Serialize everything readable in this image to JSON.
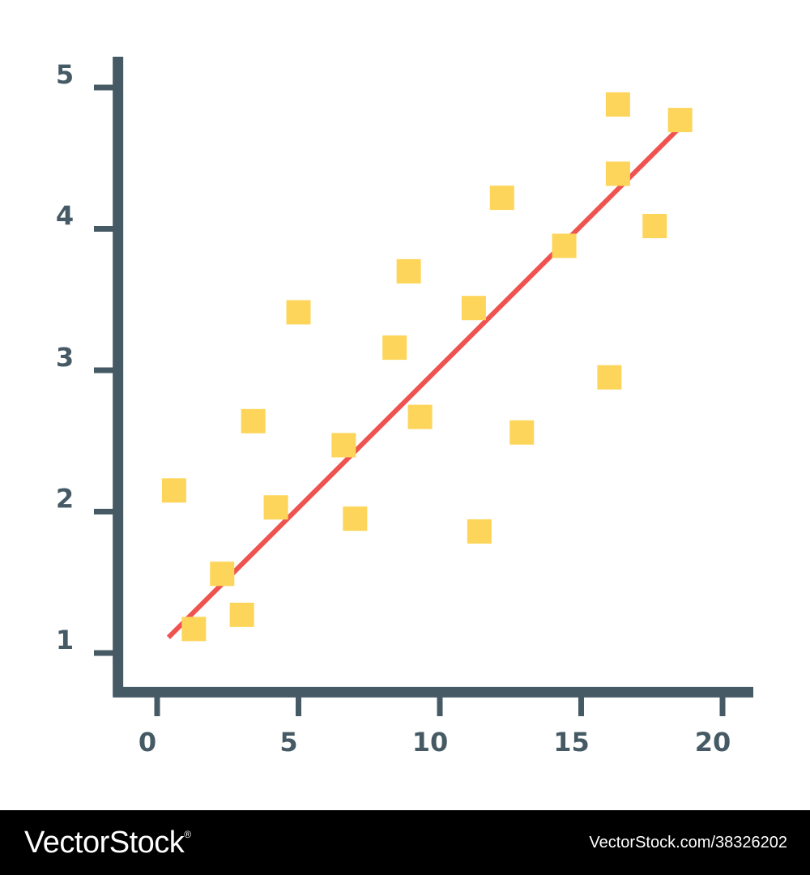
{
  "colors": {
    "background": "#ffffff",
    "axis": "#455a64",
    "point": "#fdd55a",
    "trend": "#ef5350",
    "footer_bg": "#000000",
    "footer_text": "#ffffff"
  },
  "chart_data": {
    "type": "scatter",
    "title": "",
    "xlabel": "",
    "ylabel": "",
    "xlim": [
      -1.5,
      21
    ],
    "ylim": [
      0.7,
      5.2
    ],
    "x_ticks": [
      0,
      5,
      10,
      15,
      20
    ],
    "y_ticks": [
      1,
      2,
      3,
      4,
      5
    ],
    "grid": false,
    "legend": "none",
    "points": [
      {
        "x": 0.6,
        "y": 2.15
      },
      {
        "x": 1.3,
        "y": 1.17
      },
      {
        "x": 2.3,
        "y": 1.56
      },
      {
        "x": 3.0,
        "y": 1.27
      },
      {
        "x": 3.4,
        "y": 2.64
      },
      {
        "x": 4.2,
        "y": 2.03
      },
      {
        "x": 5.0,
        "y": 3.41
      },
      {
        "x": 6.6,
        "y": 2.47
      },
      {
        "x": 7.0,
        "y": 1.95
      },
      {
        "x": 8.4,
        "y": 3.16
      },
      {
        "x": 8.9,
        "y": 3.7
      },
      {
        "x": 9.3,
        "y": 2.67
      },
      {
        "x": 11.2,
        "y": 3.44
      },
      {
        "x": 11.4,
        "y": 1.86
      },
      {
        "x": 12.2,
        "y": 4.22
      },
      {
        "x": 12.9,
        "y": 2.56
      },
      {
        "x": 14.4,
        "y": 3.88
      },
      {
        "x": 16.0,
        "y": 2.95
      },
      {
        "x": 16.3,
        "y": 4.88
      },
      {
        "x": 16.3,
        "y": 4.39
      },
      {
        "x": 17.6,
        "y": 4.02
      },
      {
        "x": 18.5,
        "y": 4.77
      }
    ],
    "trend_line": {
      "x": [
        0.4,
        18.4
      ],
      "y": [
        1.11,
        4.7
      ]
    }
  },
  "watermark": {
    "brand": "VectorStock",
    "registered": "®",
    "id_text": "VectorStock.com/38326202"
  }
}
